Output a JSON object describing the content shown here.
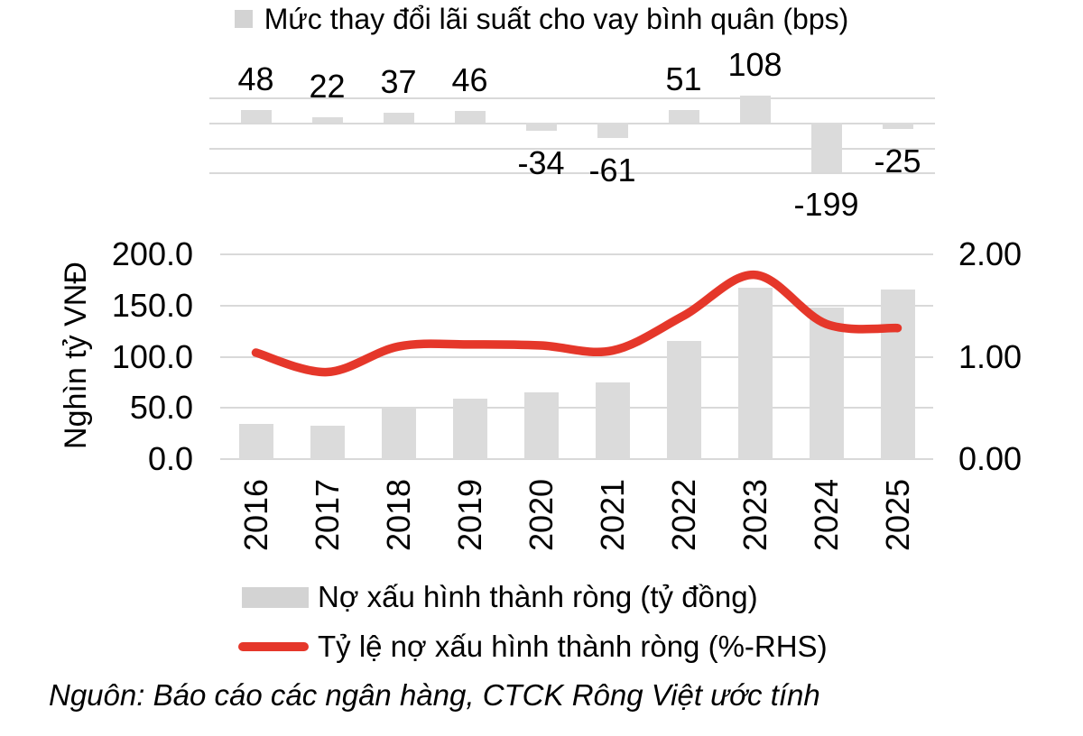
{
  "source": "Nguôn: Báo cáo các ngân hàng, CTCK Rông Việt ước tính",
  "colors": {
    "bar_fill": "#dbdbdb",
    "gridline": "#d9d9d9",
    "line": "#e5372a",
    "legend_swatch": "#d3d3d3",
    "text": "#000000"
  },
  "chart_data": [
    {
      "type": "bar",
      "title": "Mức thay đổi lãi suất cho vay bình quân (bps)",
      "categories": [
        "2016",
        "2017",
        "2018",
        "2019",
        "2020",
        "2021",
        "2022",
        "2023",
        "2024",
        "2025"
      ],
      "values": [
        48,
        22,
        37,
        46,
        -34,
        -61,
        51,
        108,
        -199,
        -25
      ],
      "data_labels": true,
      "ylim": [
        -200,
        100
      ],
      "gridlines": [
        100,
        0,
        -100,
        -200
      ],
      "xlabel": "",
      "ylabel": "",
      "legend_position": "top"
    },
    {
      "type": "bar+line",
      "categories": [
        "2016",
        "2017",
        "2018",
        "2019",
        "2020",
        "2021",
        "2022",
        "2023",
        "2024",
        "2025"
      ],
      "series": [
        {
          "name": "Nợ xấu hình thành ròng (tỷ đồng)",
          "type": "bar",
          "axis": "left",
          "values": [
            34,
            33,
            50,
            59,
            65,
            75,
            115,
            167,
            148,
            166
          ]
        },
        {
          "name": "Tỷ lệ nợ xấu hình thành ròng (%-RHS)",
          "type": "line",
          "axis": "right",
          "values": [
            1.04,
            0.85,
            1.1,
            1.12,
            1.11,
            1.06,
            1.4,
            1.8,
            1.32,
            1.28
          ]
        }
      ],
      "left_axis": {
        "title": "Nghìn tỷ VNĐ",
        "ticks": [
          "200.0",
          "150.0",
          "100.0",
          "50.0",
          "0.0"
        ],
        "range": [
          0,
          200
        ]
      },
      "right_axis": {
        "ticks": [
          "2.00",
          "1.00",
          "0.00"
        ],
        "range": [
          0,
          2
        ]
      },
      "legend": [
        {
          "swatch": "bar",
          "label": "Nợ xấu hình thành ròng (tỷ đồng)"
        },
        {
          "swatch": "line",
          "label": "Tỷ lệ nợ xấu hình thành ròng (%-RHS)"
        }
      ],
      "grid": true,
      "legend_position": "bottom"
    }
  ]
}
